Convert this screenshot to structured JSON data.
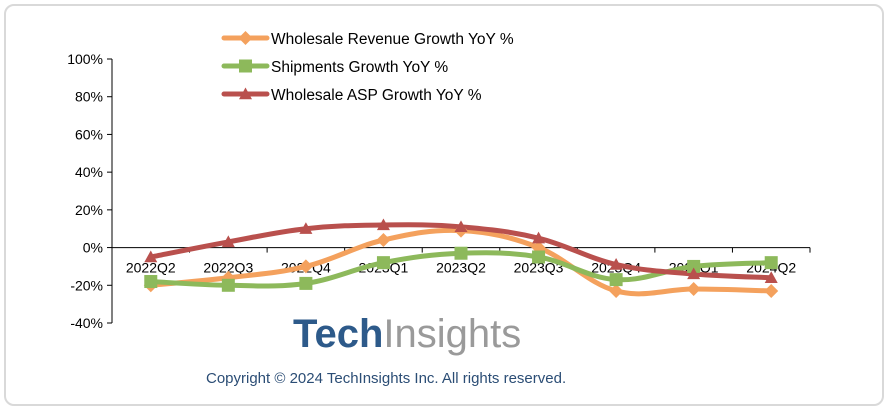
{
  "chart_data": {
    "type": "line",
    "title": "",
    "xlabel": "",
    "ylabel": "",
    "categories": [
      "2022Q2",
      "2022Q3",
      "2022Q4",
      "2023Q1",
      "2023Q2",
      "2023Q3",
      "2023Q4",
      "2024Q1",
      "2024Q2"
    ],
    "ylim": [
      -40,
      100
    ],
    "yticks": [
      "100%",
      "80%",
      "60%",
      "40%",
      "20%",
      "0%",
      "-20%",
      "-40%"
    ],
    "ytick_values": [
      100,
      80,
      60,
      40,
      20,
      0,
      -20,
      -40
    ],
    "grid": false,
    "legend_position": "top",
    "series": [
      {
        "name": "Wholesale Revenue Growth YoY %",
        "color": "#f4a15d",
        "marker": "diamond",
        "values": [
          -20,
          -16,
          -10,
          4,
          9,
          0,
          -23,
          -22,
          -23
        ]
      },
      {
        "name": "Shipments Growth YoY %",
        "color": "#8db95b",
        "marker": "square",
        "values": [
          -18,
          -20,
          -19,
          -8,
          -3,
          -5,
          -17,
          -10,
          -8
        ]
      },
      {
        "name": "Wholesale ASP Growth YoY %",
        "color": "#b9504d",
        "marker": "triangle",
        "values": [
          -5,
          3,
          10,
          12,
          11,
          5,
          -9,
          -14,
          -16
        ]
      }
    ]
  },
  "watermark": {
    "part1": "Tech",
    "part2": "Insights"
  },
  "copyright": "Copyright © 2024 TechInsights Inc.  All rights reserved."
}
